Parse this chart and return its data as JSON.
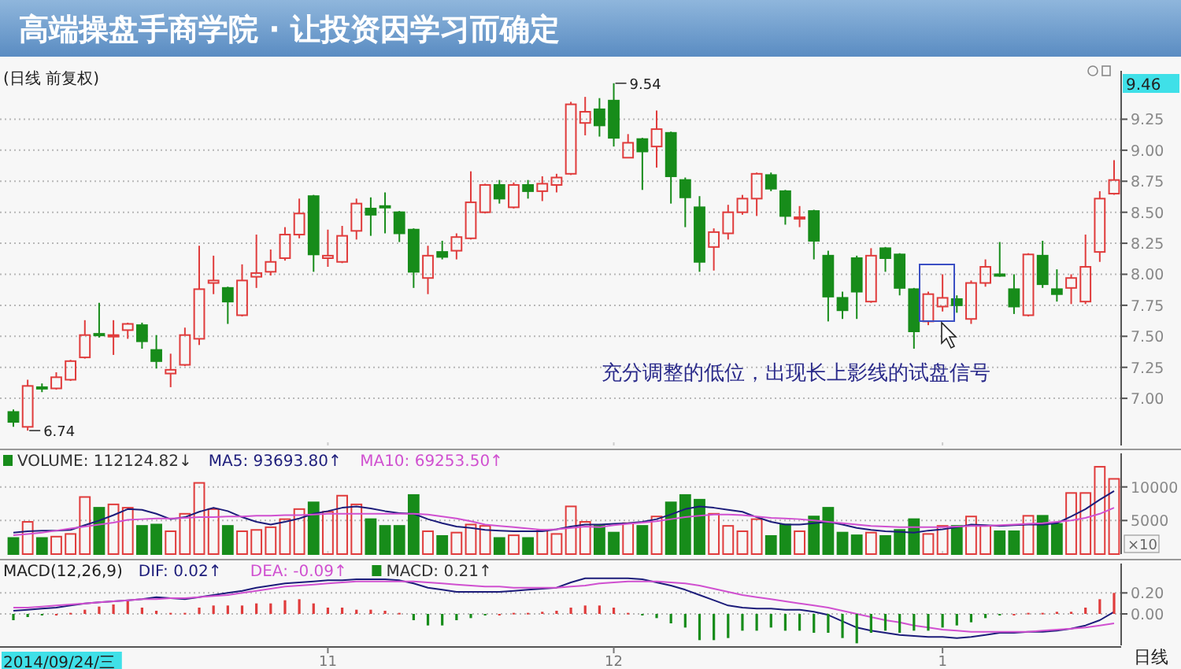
{
  "chart_data": [
    {
      "type": "candlestick",
      "title": "高端操盘手商学院 · 让投资因学习而确定",
      "subtitle": "(日线 前复权)",
      "tick_labels": "y",
      "grid": "y",
      "categories": [
        null,
        null,
        null,
        null,
        null,
        null,
        null,
        null,
        null,
        null,
        null,
        null,
        null,
        null,
        null,
        null,
        null,
        null,
        null,
        null,
        null,
        null,
        "11",
        null,
        null,
        null,
        null,
        null,
        null,
        null,
        null,
        null,
        null,
        null,
        null,
        null,
        null,
        null,
        null,
        null,
        null,
        null,
        "12",
        null,
        null,
        null,
        null,
        null,
        null,
        null,
        null,
        null,
        null,
        null,
        null,
        null,
        null,
        null,
        null,
        null,
        null,
        null,
        null,
        null,
        null,
        "1",
        null,
        null,
        null,
        null,
        null,
        null,
        null,
        null,
        null,
        null,
        null,
        null
      ],
      "ylim": [
        6.62,
        9.64
      ],
      "yticks": [
        {
          "value": 7,
          "label": "7.00"
        },
        {
          "value": 7.25,
          "label": "7.25"
        },
        {
          "value": 7.5,
          "label": "7.50"
        },
        {
          "value": 7.75,
          "label": "7.75"
        },
        {
          "value": 8,
          "label": "8.00"
        },
        {
          "value": 8.25,
          "label": "8.25"
        },
        {
          "value": 8.5,
          "label": "8.50"
        },
        {
          "value": 8.75,
          "label": "8.75"
        },
        {
          "value": 9,
          "label": "9.00"
        },
        {
          "value": 9.25,
          "label": "9.25"
        }
      ],
      "colors": [
        "#178c1a",
        "#e03c3c",
        "#178c1a",
        "#e03c3c",
        "#e03c3c",
        "#e03c3c",
        "#178c1a",
        "#e03c3c",
        "#e03c3c",
        "#178c1a",
        "#178c1a",
        "#e03c3c",
        "#e03c3c",
        "#e03c3c",
        "#e03c3c",
        "#178c1a",
        "#e03c3c",
        "#e03c3c",
        "#e03c3c",
        "#e03c3c",
        "#e03c3c",
        "#178c1a",
        "#e03c3c",
        "#e03c3c",
        "#e03c3c",
        "#178c1a",
        "#178c1a",
        "#178c1a",
        "#178c1a",
        "#e03c3c",
        "#178c1a",
        "#e03c3c",
        "#e03c3c",
        "#e03c3c",
        "#178c1a",
        "#e03c3c",
        "#178c1a",
        "#e03c3c",
        "#e03c3c",
        "#e03c3c",
        "#e03c3c",
        "#178c1a",
        "#178c1a",
        "#e03c3c",
        "#178c1a",
        "#e03c3c",
        "#178c1a",
        "#178c1a",
        "#178c1a",
        "#e03c3c",
        "#e03c3c",
        "#e03c3c",
        "#e03c3c",
        "#178c1a",
        "#178c1a",
        "#e03c3c",
        "#178c1a",
        "#178c1a",
        "#178c1a",
        "#178c1a",
        "#e03c3c",
        "#178c1a",
        "#178c1a",
        "#178c1a",
        "#e03c3c",
        "#e03c3c",
        "#178c1a",
        "#e03c3c",
        "#e03c3c",
        "#178c1a",
        "#178c1a",
        "#e03c3c",
        "#178c1a",
        "#178c1a",
        "#e03c3c",
        "#e03c3c",
        "#e03c3c",
        "#e03c3c"
      ],
      "ohlc": [
        [
          6.89,
          6.91,
          6.77,
          6.81
        ],
        [
          6.77,
          7.15,
          6.74,
          7.1
        ],
        [
          7.09,
          7.12,
          7.05,
          7.08
        ],
        [
          7.08,
          7.21,
          7.07,
          7.17
        ],
        [
          7.15,
          7.31,
          7.14,
          7.3
        ],
        [
          7.33,
          7.63,
          7.32,
          7.51
        ],
        [
          7.52,
          7.77,
          7.49,
          7.51
        ],
        [
          7.51,
          7.63,
          7.35,
          7.51
        ],
        [
          7.55,
          7.61,
          7.48,
          7.6
        ],
        [
          7.59,
          7.61,
          7.4,
          7.46
        ],
        [
          7.39,
          7.51,
          7.24,
          7.3
        ],
        [
          7.2,
          7.36,
          7.09,
          7.23
        ],
        [
          7.27,
          7.57,
          7.26,
          7.51
        ],
        [
          7.48,
          8.23,
          7.43,
          7.88
        ],
        [
          7.93,
          8.15,
          7.84,
          7.95
        ],
        [
          7.89,
          7.9,
          7.6,
          7.78
        ],
        [
          7.67,
          8.08,
          7.66,
          7.95
        ],
        [
          7.98,
          8.32,
          7.89,
          8.01
        ],
        [
          8.02,
          8.2,
          7.99,
          8.1
        ],
        [
          8.13,
          8.38,
          8.11,
          8.32
        ],
        [
          8.32,
          8.61,
          8.29,
          8.49
        ],
        [
          8.63,
          8.64,
          8.02,
          8.16
        ],
        [
          8.13,
          8.36,
          8.06,
          8.15
        ],
        [
          8.1,
          8.39,
          8.09,
          8.31
        ],
        [
          8.35,
          8.61,
          8.28,
          8.57
        ],
        [
          8.53,
          8.62,
          8.31,
          8.48
        ],
        [
          8.55,
          8.66,
          8.33,
          8.54
        ],
        [
          8.5,
          8.51,
          8.26,
          8.33
        ],
        [
          8.36,
          8.37,
          7.89,
          8.02
        ],
        [
          7.97,
          8.23,
          7.84,
          8.15
        ],
        [
          8.18,
          8.27,
          8.12,
          8.14
        ],
        [
          8.19,
          8.33,
          8.12,
          8.3
        ],
        [
          8.29,
          8.83,
          8.28,
          8.58
        ],
        [
          8.5,
          8.73,
          8.49,
          8.72
        ],
        [
          8.72,
          8.76,
          8.57,
          8.61
        ],
        [
          8.54,
          8.74,
          8.53,
          8.72
        ],
        [
          8.72,
          8.76,
          8.61,
          8.67
        ],
        [
          8.67,
          8.79,
          8.59,
          8.73
        ],
        [
          8.72,
          8.81,
          8.66,
          8.78
        ],
        [
          8.81,
          9.39,
          8.8,
          9.37
        ],
        [
          9.22,
          9.43,
          9.12,
          9.31
        ],
        [
          9.33,
          9.42,
          9.11,
          9.2
        ],
        [
          9.4,
          9.54,
          9.03,
          9.1
        ],
        [
          8.94,
          9.13,
          8.94,
          9.06
        ],
        [
          9.09,
          9.1,
          8.68,
          8.99
        ],
        [
          9.03,
          9.32,
          8.86,
          9.17
        ],
        [
          9.14,
          9.15,
          8.57,
          8.79
        ],
        [
          8.76,
          8.78,
          8.38,
          8.62
        ],
        [
          8.54,
          8.63,
          8.02,
          8.1
        ],
        [
          8.22,
          8.37,
          8.03,
          8.34
        ],
        [
          8.33,
          8.56,
          8.28,
          8.5
        ],
        [
          8.5,
          8.64,
          8.48,
          8.61
        ],
        [
          8.61,
          8.82,
          8.47,
          8.81
        ],
        [
          8.8,
          8.82,
          8.67,
          8.69
        ],
        [
          8.67,
          8.68,
          8.4,
          8.47
        ],
        [
          8.46,
          8.55,
          8.38,
          8.46
        ],
        [
          8.51,
          8.52,
          8.12,
          8.27
        ],
        [
          8.15,
          8.19,
          7.62,
          7.82
        ],
        [
          7.81,
          7.86,
          7.64,
          7.71
        ],
        [
          8.13,
          8.15,
          7.64,
          7.86
        ],
        [
          7.78,
          8.21,
          7.77,
          8.15
        ],
        [
          8.21,
          8.22,
          8.02,
          8.13
        ],
        [
          8.16,
          8.17,
          7.83,
          7.89
        ],
        [
          7.88,
          7.89,
          7.4,
          7.54
        ],
        [
          7.62,
          7.86,
          7.59,
          7.84
        ],
        [
          7.74,
          8,
          7.7,
          7.81
        ],
        [
          7.8,
          7.83,
          7.69,
          7.75
        ],
        [
          7.64,
          7.95,
          7.6,
          7.93
        ],
        [
          7.93,
          8.12,
          7.9,
          8.06
        ],
        [
          8,
          8.26,
          7.98,
          7.99
        ],
        [
          7.88,
          8,
          7.68,
          7.74
        ],
        [
          7.67,
          8.17,
          7.66,
          8.16
        ],
        [
          8.15,
          8.27,
          7.89,
          7.92
        ],
        [
          7.88,
          8.04,
          7.78,
          7.84
        ],
        [
          7.89,
          8,
          7.76,
          7.97
        ],
        [
          7.78,
          8.32,
          7.76,
          8.06
        ],
        [
          8.18,
          8.67,
          8.1,
          8.61
        ],
        [
          8.65,
          8.92,
          8.64,
          8.76
        ]
      ],
      "annotations": [
        "充分调整的低位，出现长上影线的试盘信号",
        "9.46",
        "9.54",
        "6.74"
      ]
    },
    {
      "type": "bar",
      "tick_labels": "y",
      "grid": "y",
      "legend": "top left",
      "ylabel": "×10",
      "categories": [
        null,
        null,
        null,
        null,
        null,
        null,
        null,
        null,
        null,
        null,
        null,
        null,
        null,
        null,
        null,
        null,
        null,
        null,
        null,
        null,
        null,
        null,
        "11",
        null,
        null,
        null,
        null,
        null,
        null,
        null,
        null,
        null,
        null,
        null,
        null,
        null,
        null,
        null,
        null,
        null,
        null,
        null,
        "12",
        null,
        null,
        null,
        null,
        null,
        null,
        null,
        null,
        null,
        null,
        null,
        null,
        null,
        null,
        null,
        null,
        null,
        null,
        null,
        null,
        null,
        null,
        "1",
        null,
        null,
        null,
        null,
        null,
        null,
        null,
        null,
        null,
        null,
        null,
        null
      ],
      "ylim": [
        0,
        15000
      ],
      "yticks": [
        5000,
        10000
      ],
      "series": [
        {
          "type": "bar",
          "name": "VOLUME: 112124.82↓",
          "colors": [
            "#178c1a",
            "#e03c3c",
            "#178c1a",
            "#e03c3c",
            "#e03c3c",
            "#e03c3c",
            "#178c1a",
            "#e03c3c",
            "#e03c3c",
            "#178c1a",
            "#178c1a",
            "#e03c3c",
            "#e03c3c",
            "#e03c3c",
            "#e03c3c",
            "#178c1a",
            "#e03c3c",
            "#e03c3c",
            "#e03c3c",
            "#e03c3c",
            "#e03c3c",
            "#178c1a",
            "#e03c3c",
            "#e03c3c",
            "#e03c3c",
            "#178c1a",
            "#178c1a",
            "#178c1a",
            "#178c1a",
            "#e03c3c",
            "#178c1a",
            "#e03c3c",
            "#e03c3c",
            "#e03c3c",
            "#178c1a",
            "#e03c3c",
            "#178c1a",
            "#e03c3c",
            "#e03c3c",
            "#e03c3c",
            "#e03c3c",
            "#178c1a",
            "#178c1a",
            "#e03c3c",
            "#178c1a",
            "#e03c3c",
            "#178c1a",
            "#178c1a",
            "#178c1a",
            "#e03c3c",
            "#e03c3c",
            "#e03c3c",
            "#e03c3c",
            "#178c1a",
            "#178c1a",
            "#e03c3c",
            "#178c1a",
            "#178c1a",
            "#178c1a",
            "#178c1a",
            "#e03c3c",
            "#178c1a",
            "#178c1a",
            "#178c1a",
            "#e03c3c",
            "#e03c3c",
            "#178c1a",
            "#e03c3c",
            "#e03c3c",
            "#178c1a",
            "#178c1a",
            "#e03c3c",
            "#178c1a",
            "#178c1a",
            "#e03c3c",
            "#e03c3c",
            "#e03c3c",
            "#e03c3c"
          ],
          "values": [
            2400,
            4800,
            2400,
            2600,
            3000,
            8500,
            6900,
            7400,
            6900,
            4200,
            4400,
            3400,
            6000,
            10600,
            6700,
            4200,
            3400,
            3600,
            4000,
            5200,
            6700,
            7700,
            6300,
            8700,
            7400,
            5200,
            4200,
            4200,
            8800,
            3400,
            2700,
            3200,
            4400,
            4200,
            2400,
            2800,
            2400,
            3600,
            3000,
            7100,
            4800,
            4200,
            3200,
            4600,
            4200,
            5600,
            7700,
            8800,
            8100,
            6000,
            4200,
            3400,
            5200,
            2700,
            4400,
            3400,
            5600,
            6900,
            3200,
            2800,
            3200,
            2700,
            3600,
            5200,
            3000,
            4200,
            4200,
            5600,
            4200,
            3400,
            3400,
            5700,
            5700,
            4500,
            9100,
            9100,
            13000,
            11200
          ]
        },
        {
          "type": "line",
          "name": "MA5: 93693.80↑",
          "color": "#1c1c7a",
          "values": [
            3200,
            3400,
            3500,
            3500,
            3600,
            4300,
            5000,
            5800,
            6700,
            6600,
            6000,
            5200,
            5500,
            6300,
            6900,
            6400,
            5500,
            4800,
            4400,
            4800,
            5300,
            6000,
            6400,
            6900,
            7100,
            6800,
            6400,
            6100,
            6000,
            5200,
            4600,
            4100,
            3900,
            3600,
            3500,
            3400,
            3400,
            3400,
            3700,
            4100,
            4400,
            4400,
            4500,
            4600,
            4800,
            5200,
            5900,
            6700,
            7100,
            6900,
            6600,
            6300,
            5500,
            4800,
            4400,
            4400,
            4600,
            4800,
            4400,
            3900,
            3600,
            3400,
            3300,
            3200,
            3500,
            3700,
            4000,
            4400,
            4300,
            4200,
            4300,
            4400,
            4400,
            4600,
            5600,
            6700,
            8100,
            9400
          ]
        },
        {
          "type": "line",
          "name": "MA10: 69253.50↑",
          "color": "#d050d0",
          "values": [
            2800,
            3000,
            3200,
            3500,
            3800,
            4100,
            4400,
            4700,
            5100,
            5200,
            5300,
            5300,
            5400,
            5500,
            5500,
            5600,
            5600,
            5700,
            5700,
            5800,
            5800,
            5900,
            6000,
            6000,
            6000,
            6000,
            6000,
            6000,
            6000,
            5900,
            5600,
            5300,
            4900,
            4400,
            4200,
            4000,
            3800,
            3600,
            3700,
            3900,
            4100,
            4000,
            4300,
            4500,
            4700,
            4900,
            5200,
            5500,
            5700,
            5900,
            5900,
            5800,
            5600,
            5400,
            5300,
            5200,
            5000,
            4800,
            4600,
            4400,
            4200,
            4100,
            4000,
            4000,
            4000,
            4000,
            4100,
            4200,
            4200,
            4300,
            4400,
            4500,
            4600,
            4800,
            5000,
            5400,
            6000,
            6900
          ]
        }
      ]
    },
    {
      "type": "bar",
      "title": "MACD(12,26,9)",
      "grid": "y",
      "legend": "top left",
      "categories": [
        null,
        null,
        null,
        null,
        null,
        null,
        null,
        null,
        null,
        null,
        null,
        null,
        null,
        null,
        null,
        null,
        null,
        null,
        null,
        null,
        null,
        null,
        "11",
        null,
        null,
        null,
        null,
        null,
        null,
        null,
        null,
        null,
        null,
        null,
        null,
        null,
        null,
        null,
        null,
        null,
        null,
        null,
        "12",
        null,
        null,
        null,
        null,
        null,
        null,
        null,
        null,
        null,
        null,
        null,
        null,
        null,
        null,
        null,
        null,
        null,
        null,
        null,
        null,
        null,
        null,
        "1",
        null,
        null,
        null,
        null,
        null,
        null,
        null,
        null,
        null,
        null,
        null,
        null
      ],
      "ylim": [
        -0.3,
        0.48
      ],
      "yticks": [
        {
          "value": 0,
          "label": "0.00"
        },
        {
          "value": 0.2,
          "label": "0.20"
        }
      ],
      "series": [
        {
          "type": "line",
          "name": "DIF: 0.02↑",
          "color": "#1c1c7a",
          "values": [
            0.03,
            0.04,
            0.05,
            0.06,
            0.08,
            0.1,
            0.11,
            0.12,
            0.13,
            0.14,
            0.16,
            0.15,
            0.14,
            0.16,
            0.18,
            0.2,
            0.22,
            0.25,
            0.27,
            0.29,
            0.3,
            0.31,
            0.32,
            0.32,
            0.33,
            0.33,
            0.33,
            0.32,
            0.29,
            0.25,
            0.23,
            0.21,
            0.21,
            0.21,
            0.21,
            0.22,
            0.23,
            0.24,
            0.25,
            0.3,
            0.34,
            0.34,
            0.34,
            0.34,
            0.33,
            0.3,
            0.27,
            0.23,
            0.18,
            0.13,
            0.08,
            0.06,
            0.05,
            0.05,
            0.04,
            0.04,
            0.02,
            -0.01,
            -0.07,
            -0.13,
            -0.16,
            -0.18,
            -0.2,
            -0.21,
            -0.22,
            -0.22,
            -0.23,
            -0.22,
            -0.2,
            -0.18,
            -0.18,
            -0.17,
            -0.17,
            -0.16,
            -0.14,
            -0.11,
            -0.06,
            0.02
          ]
        },
        {
          "type": "line",
          "name": "DEA: -0.09↑",
          "color": "#d050d0",
          "values": [
            0.06,
            0.06,
            0.07,
            0.08,
            0.09,
            0.1,
            0.11,
            0.12,
            0.13,
            0.14,
            0.14,
            0.15,
            0.15,
            0.16,
            0.17,
            0.18,
            0.2,
            0.22,
            0.24,
            0.26,
            0.27,
            0.28,
            0.29,
            0.3,
            0.31,
            0.31,
            0.31,
            0.31,
            0.31,
            0.3,
            0.29,
            0.28,
            0.27,
            0.26,
            0.26,
            0.25,
            0.25,
            0.25,
            0.25,
            0.26,
            0.27,
            0.29,
            0.3,
            0.31,
            0.31,
            0.31,
            0.3,
            0.29,
            0.27,
            0.24,
            0.21,
            0.18,
            0.16,
            0.14,
            0.12,
            0.1,
            0.08,
            0.06,
            0.03,
            0,
            -0.03,
            -0.06,
            -0.08,
            -0.11,
            -0.13,
            -0.15,
            -0.16,
            -0.17,
            -0.17,
            -0.17,
            -0.17,
            -0.17,
            -0.16,
            -0.15,
            -0.14,
            -0.13,
            -0.11,
            -0.09
          ]
        },
        {
          "type": "bar",
          "name": "MACD: 0.21↑",
          "colors": [
            "#178c1a",
            "#178c1a",
            "#178c1a",
            "#e03c3c",
            "#e03c3c",
            "#e03c3c",
            "#e03c3c",
            "#e03c3c",
            "#e03c3c",
            "#e03c3c",
            "#e03c3c",
            "#e03c3c",
            "#e03c3c",
            "#e03c3c",
            "#e03c3c",
            "#e03c3c",
            "#e03c3c",
            "#e03c3c",
            "#e03c3c",
            "#e03c3c",
            "#e03c3c",
            "#e03c3c",
            "#e03c3c",
            "#e03c3c",
            "#e03c3c",
            "#e03c3c",
            "#e03c3c",
            "#e03c3c",
            "#178c1a",
            "#178c1a",
            "#178c1a",
            "#178c1a",
            "#178c1a",
            "#178c1a",
            "#e03c3c",
            "#e03c3c",
            "#e03c3c",
            "#e03c3c",
            "#e03c3c",
            "#e03c3c",
            "#e03c3c",
            "#e03c3c",
            "#e03c3c",
            "#e03c3c",
            "#178c1a",
            "#178c1a",
            "#178c1a",
            "#178c1a",
            "#178c1a",
            "#178c1a",
            "#178c1a",
            "#178c1a",
            "#178c1a",
            "#178c1a",
            "#178c1a",
            "#178c1a",
            "#178c1a",
            "#178c1a",
            "#178c1a",
            "#178c1a",
            "#178c1a",
            "#178c1a",
            "#178c1a",
            "#178c1a",
            "#178c1a",
            "#178c1a",
            "#178c1a",
            "#178c1a",
            "#178c1a",
            "#178c1a",
            "#e03c3c",
            "#e03c3c",
            "#e03c3c",
            "#e03c3c",
            "#e03c3c",
            "#e03c3c",
            "#e03c3c",
            "#e03c3c"
          ],
          "values": [
            -0.06,
            -0.03,
            -0.01,
            0,
            0.01,
            0.04,
            0.07,
            0.09,
            0.12,
            0.06,
            0.03,
            0.01,
            0.01,
            0.06,
            0.08,
            0.08,
            0.08,
            0.1,
            0.1,
            0.13,
            0.14,
            0.1,
            0.06,
            0.06,
            0.04,
            0.04,
            0.03,
            0.01,
            -0.06,
            -0.11,
            -0.11,
            -0.06,
            -0.04,
            -0.01,
            0,
            0.01,
            0.01,
            0.02,
            0.03,
            0.06,
            0.08,
            0.08,
            0.06,
            0.01,
            -0.01,
            -0.04,
            -0.09,
            -0.13,
            -0.25,
            -0.25,
            -0.23,
            -0.16,
            -0.16,
            -0.13,
            -0.16,
            -0.16,
            -0.18,
            -0.18,
            -0.23,
            -0.28,
            -0.18,
            -0.16,
            -0.18,
            -0.16,
            -0.16,
            -0.13,
            -0.11,
            -0.08,
            -0.04,
            -0.01,
            0,
            0.01,
            0.01,
            0.02,
            0.02,
            0.06,
            0.14,
            0.2
          ]
        }
      ],
      "annotations": [
        "2014/09/24/三",
        "日线"
      ]
    }
  ]
}
